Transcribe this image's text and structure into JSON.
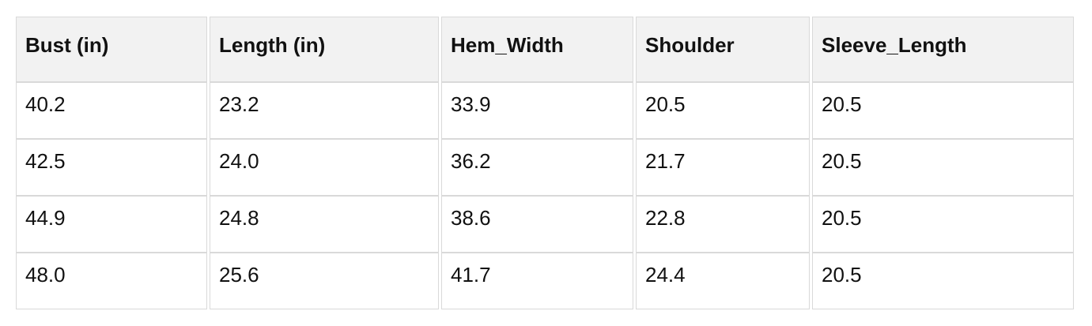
{
  "table": {
    "columns": [
      "Bust (in)",
      "Length (in)",
      "Hem_Width",
      "Shoulder",
      "Sleeve_Length"
    ],
    "rows": [
      [
        "40.2",
        "23.2",
        "33.9",
        "20.5",
        "20.5"
      ],
      [
        "42.5",
        "24.0",
        "36.2",
        "21.7",
        "20.5"
      ],
      [
        "44.9",
        "24.8",
        "38.6",
        "22.8",
        "20.5"
      ],
      [
        "48.0",
        "25.6",
        "41.7",
        "24.4",
        "20.5"
      ]
    ],
    "style": {
      "header_bg": "#f2f2f2",
      "border": "#d9d9d9",
      "text": "#111111",
      "page_bg": "#ffffff"
    }
  },
  "chart_data": {
    "type": "table",
    "title": "",
    "columns": [
      "Bust (in)",
      "Length (in)",
      "Hem_Width",
      "Shoulder",
      "Sleeve_Length"
    ],
    "rows": [
      [
        40.2,
        23.2,
        33.9,
        20.5,
        20.5
      ],
      [
        42.5,
        24.0,
        36.2,
        21.7,
        20.5
      ],
      [
        44.9,
        24.8,
        38.6,
        22.8,
        20.5
      ],
      [
        48.0,
        25.6,
        41.7,
        24.4,
        20.5
      ]
    ]
  }
}
